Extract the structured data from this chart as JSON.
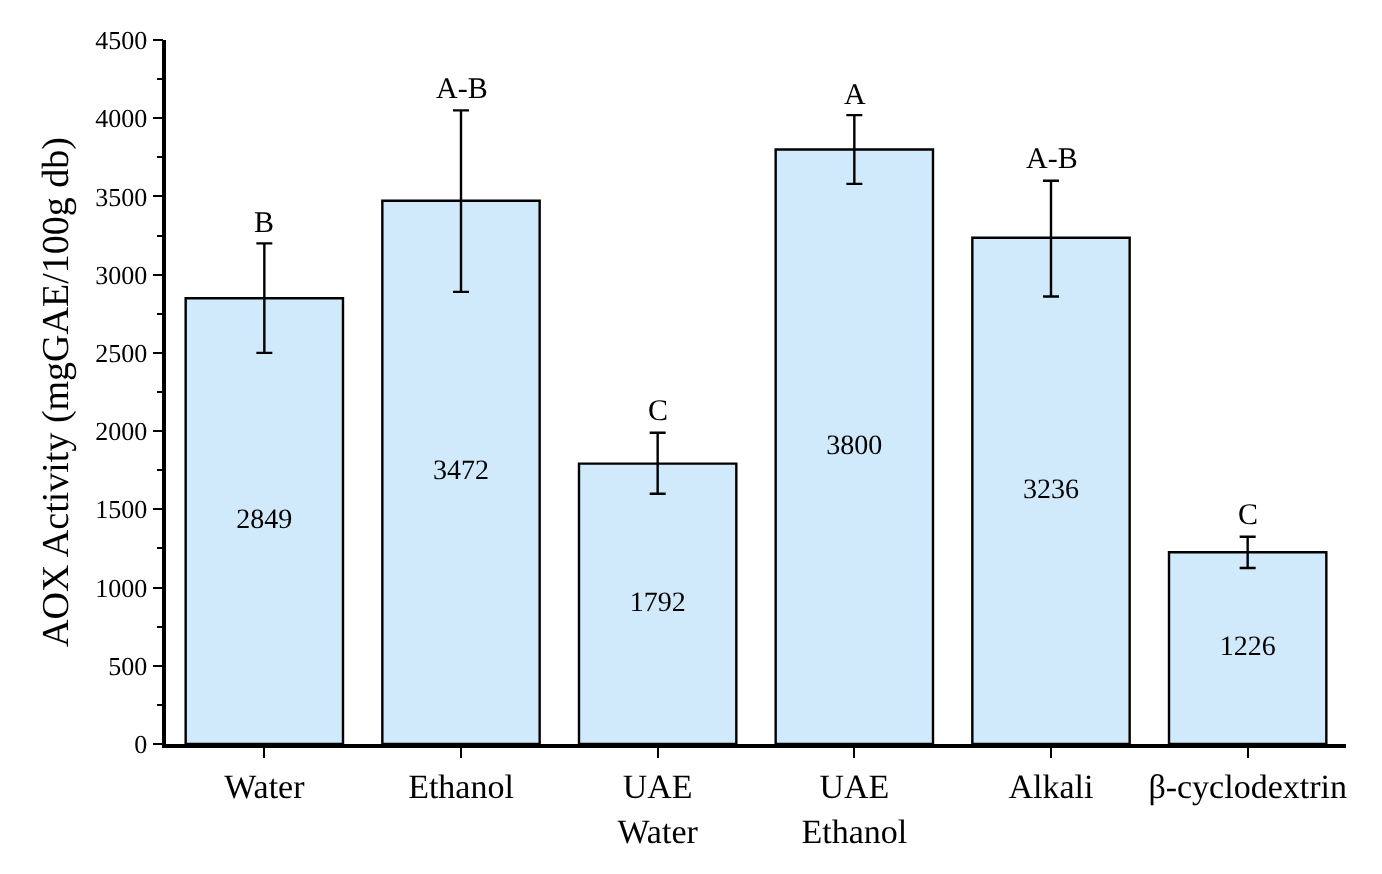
{
  "chart_data": {
    "type": "bar",
    "ylabel": "AOX Activity (mgGAE/100g db)",
    "categories": [
      "Water",
      "Ethanol",
      "UAE\nWater",
      "UAE\nEthanol",
      "Alkali",
      "β-cyclodextrin"
    ],
    "values": [
      2849,
      3472,
      1792,
      3800,
      3236,
      1226
    ],
    "errors": [
      [
        2500,
        3200
      ],
      [
        2890,
        4050
      ],
      [
        1600,
        1990
      ],
      [
        3580,
        4020
      ],
      [
        2860,
        3600
      ],
      [
        1125,
        1325
      ]
    ],
    "color": "#d0eafb",
    "data_labels": true,
    "ylim": [
      0,
      4500
    ],
    "yticks": [
      0,
      500,
      1000,
      1500,
      2000,
      2500,
      3000,
      3500,
      4000,
      4500
    ],
    "annotations": [
      {
        "text": "B",
        "x": "Water",
        "y": 3200
      },
      {
        "text": "A-B",
        "x": "Ethanol",
        "y": 4050
      },
      {
        "text": "C",
        "x": "UAE\nWater",
        "y": 1990
      },
      {
        "text": "A",
        "x": "UAE\nEthanol",
        "y": 4020
      },
      {
        "text": "A-B",
        "x": "Alkali",
        "y": 3600
      },
      {
        "text": "C",
        "x": "β-cyclodextrin",
        "y": 1325
      }
    ]
  }
}
